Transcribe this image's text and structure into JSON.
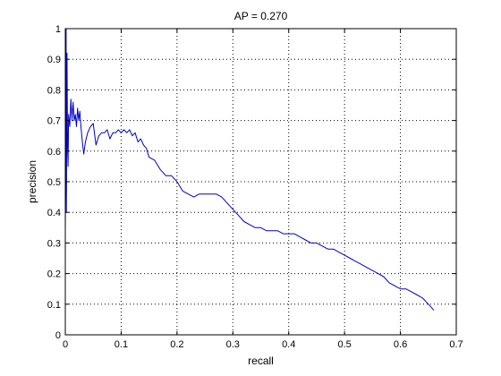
{
  "chart_data": {
    "type": "line",
    "title": "AP = 0.270",
    "xlabel": "recall",
    "ylabel": "precision",
    "xlim": [
      0,
      0.7
    ],
    "ylim": [
      0,
      1
    ],
    "xticks": [
      "0",
      "0.1",
      "0.2",
      "0.3",
      "0.4",
      "0.5",
      "0.6",
      "0.7"
    ],
    "yticks": [
      "0",
      "0.1",
      "0.2",
      "0.3",
      "0.4",
      "0.5",
      "0.6",
      "0.7",
      "0.8",
      "0.9",
      "1"
    ],
    "grid": true,
    "colors": {
      "series": "#0000c8",
      "grid": "#000000",
      "axes": "#000000"
    },
    "series": [
      {
        "x": [
          0.0,
          0.0015,
          0.002,
          0.003,
          0.004,
          0.005,
          0.006,
          0.008,
          0.01,
          0.012,
          0.014,
          0.016,
          0.018,
          0.02,
          0.022,
          0.024,
          0.026,
          0.028,
          0.03,
          0.033,
          0.036,
          0.04,
          0.045,
          0.05,
          0.055,
          0.06,
          0.065,
          0.07,
          0.075,
          0.08,
          0.085,
          0.09,
          0.095,
          0.1,
          0.105,
          0.11,
          0.115,
          0.12,
          0.125,
          0.13,
          0.135,
          0.14,
          0.145,
          0.15,
          0.16,
          0.17,
          0.18,
          0.19,
          0.2,
          0.21,
          0.22,
          0.23,
          0.24,
          0.25,
          0.26,
          0.27,
          0.28,
          0.29,
          0.3,
          0.31,
          0.32,
          0.33,
          0.34,
          0.35,
          0.36,
          0.37,
          0.38,
          0.39,
          0.4,
          0.41,
          0.42,
          0.43,
          0.44,
          0.45,
          0.46,
          0.47,
          0.48,
          0.49,
          0.5,
          0.51,
          0.52,
          0.53,
          0.54,
          0.55,
          0.56,
          0.57,
          0.58,
          0.59,
          0.6,
          0.61,
          0.62,
          0.63,
          0.64,
          0.65,
          0.66
        ],
        "y": [
          0.33,
          1.0,
          0.4,
          0.92,
          0.62,
          0.55,
          0.72,
          0.68,
          0.77,
          0.7,
          0.76,
          0.7,
          0.72,
          0.68,
          0.74,
          0.7,
          0.73,
          0.68,
          0.64,
          0.59,
          0.63,
          0.66,
          0.68,
          0.69,
          0.62,
          0.65,
          0.66,
          0.66,
          0.67,
          0.64,
          0.66,
          0.66,
          0.67,
          0.66,
          0.67,
          0.66,
          0.67,
          0.65,
          0.66,
          0.63,
          0.64,
          0.62,
          0.61,
          0.58,
          0.57,
          0.54,
          0.52,
          0.52,
          0.5,
          0.47,
          0.46,
          0.45,
          0.46,
          0.46,
          0.46,
          0.46,
          0.45,
          0.43,
          0.41,
          0.39,
          0.37,
          0.36,
          0.35,
          0.35,
          0.34,
          0.34,
          0.34,
          0.33,
          0.33,
          0.33,
          0.32,
          0.31,
          0.3,
          0.3,
          0.29,
          0.28,
          0.28,
          0.27,
          0.26,
          0.25,
          0.24,
          0.23,
          0.22,
          0.21,
          0.2,
          0.19,
          0.17,
          0.16,
          0.15,
          0.15,
          0.14,
          0.13,
          0.12,
          0.1,
          0.08
        ]
      }
    ]
  }
}
